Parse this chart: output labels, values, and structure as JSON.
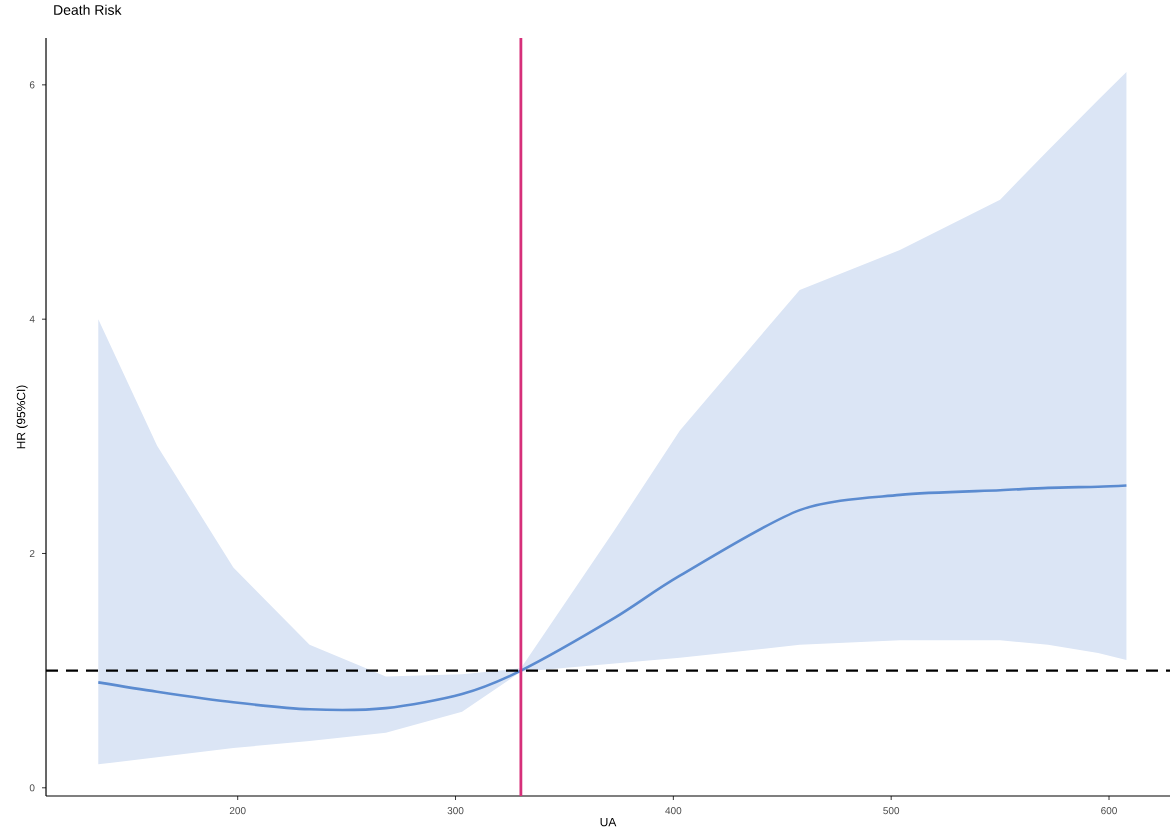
{
  "chart_data": {
    "type": "line",
    "title": "Death Risk",
    "xlabel": "UA",
    "ylabel": "HR (95%CI)",
    "x": [
      136,
      163,
      198,
      233,
      268,
      303,
      330,
      373,
      403,
      458,
      504,
      550,
      572,
      595,
      608
    ],
    "series": [
      {
        "color": "#5b8bd0",
        "values": [
          0.9,
          0.82,
          0.73,
          0.67,
          0.68,
          0.8,
          1.0,
          1.45,
          1.81,
          2.37,
          2.5,
          2.54,
          2.56,
          2.57,
          2.58
        ],
        "upper": [
          4.0,
          2.92,
          1.88,
          1.22,
          0.95,
          0.97,
          1.02,
          2.2,
          3.05,
          4.25,
          4.59,
          5.02,
          5.44,
          5.87,
          6.11
        ],
        "lower": [
          0.2,
          0.26,
          0.34,
          0.4,
          0.47,
          0.65,
          0.99,
          1.06,
          1.11,
          1.22,
          1.26,
          1.26,
          1.22,
          1.15,
          1.09
        ]
      }
    ],
    "xlim": [
      112,
      628
    ],
    "ylim": [
      -0.07,
      6.4
    ],
    "xticks": [
      200,
      300,
      400,
      500,
      600
    ],
    "yticks": [
      0,
      2,
      4,
      6
    ],
    "ref_lines": [
      {
        "axis": "x",
        "value": 330,
        "color": "#d6307a",
        "line_style": "solid"
      },
      {
        "axis": "y",
        "value": 1,
        "color": "#000000",
        "line_style": "dashed"
      }
    ],
    "grid": false,
    "marker": "none",
    "line_style": "solid"
  }
}
